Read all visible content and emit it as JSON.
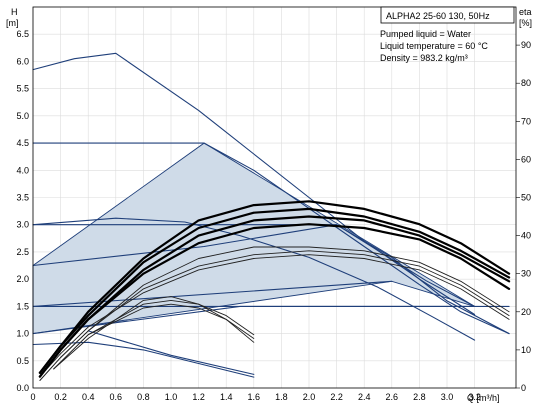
{
  "chart_data": {
    "type": "line",
    "title": "ALPHA2 25-60 130, 50Hz",
    "info": [
      "Pumped liquid = Water",
      "Liquid temperature = 60 °C",
      "Density = 983.2 kg/m³"
    ],
    "y_left": {
      "label": "H",
      "unit": "[m]",
      "range": [
        0,
        7
      ],
      "ticks": [
        "0.0",
        "0.5",
        "1.0",
        "1.5",
        "2.0",
        "2.5",
        "3.0",
        "3.5",
        "4.0",
        "4.5",
        "5.0",
        "5.5",
        "6.0",
        "6.5"
      ]
    },
    "y_right": {
      "label": "eta",
      "unit": "[%]",
      "range": [
        0,
        100
      ],
      "ticks": [
        "0",
        "10",
        "20",
        "30",
        "40",
        "50",
        "60",
        "70",
        "80",
        "90"
      ]
    },
    "x": {
      "label": "Q [m³/h]",
      "range": [
        0,
        3.5
      ],
      "ticks": [
        "0",
        "0.2",
        "0.4",
        "0.6",
        "0.8",
        "1.0",
        "1.2",
        "1.4",
        "1.6",
        "1.8",
        "2.0",
        "2.2",
        "2.4",
        "2.6",
        "2.8",
        "3.0",
        "3.2"
      ]
    },
    "grid": true,
    "operating_area": [
      [
        0,
        1.0
      ],
      [
        0,
        2.25
      ],
      [
        1.24,
        4.5
      ],
      [
        3.2,
        1.5
      ],
      [
        2.6,
        1.96
      ],
      [
        0,
        1.0
      ]
    ],
    "series": [
      {
        "style": "head",
        "x": [
          0,
          0.3,
          0.6,
          1.2,
          1.6,
          2.0,
          2.4,
          2.8,
          3.2
        ],
        "y": [
          5.85,
          6.05,
          6.15,
          5.1,
          4.3,
          3.5,
          2.7,
          2.0,
          1.35
        ]
      },
      {
        "style": "head",
        "x": [
          0,
          1.24,
          1.6,
          2.0,
          2.4,
          2.8,
          3.1,
          3.45
        ],
        "y": [
          4.5,
          4.5,
          4.0,
          3.3,
          2.6,
          1.9,
          1.4,
          1.0
        ]
      },
      {
        "style": "head",
        "x": [
          0,
          0.6,
          1.2,
          1.6,
          2.0,
          2.2,
          2.6,
          3.0,
          3.45
        ],
        "y": [
          3.0,
          3.0,
          3.0,
          3.0,
          3.0,
          3.0,
          2.4,
          1.6,
          1.0
        ]
      },
      {
        "style": "head",
        "x": [
          0,
          2.0,
          2.6,
          3.0,
          3.45
        ],
        "y": [
          1.5,
          1.5,
          1.5,
          1.5,
          1.5
        ]
      },
      {
        "style": "head",
        "x": [
          0,
          0.6,
          1.1,
          1.5,
          2.0,
          2.5,
          2.9,
          3.2
        ],
        "y": [
          3.0,
          3.12,
          3.05,
          2.8,
          2.4,
          1.85,
          1.3,
          0.88
        ]
      },
      {
        "style": "head",
        "x": [
          0,
          1.24,
          2.2,
          2.85,
          3.2
        ],
        "y": [
          2.25,
          2.6,
          3.0,
          1.97,
          1.5
        ]
      },
      {
        "style": "head",
        "x": [
          0,
          2.6
        ],
        "y": [
          1.5,
          1.96
        ]
      },
      {
        "style": "head",
        "x": [
          0,
          1.5,
          3.2
        ],
        "y": [
          1.0,
          1.5,
          1.5
        ]
      },
      {
        "style": "head",
        "x": [
          0,
          0.4,
          0.8,
          1.2,
          1.6
        ],
        "y": [
          0.8,
          0.84,
          0.7,
          0.45,
          0.2
        ]
      },
      {
        "style": "head",
        "x": [
          0.4,
          1.0,
          1.6
        ],
        "y": [
          1.05,
          0.6,
          0.25
        ]
      },
      {
        "style": "eta",
        "x": [
          0.05,
          0.2,
          0.4,
          0.8,
          1.2,
          1.6,
          2.0,
          2.4,
          2.8,
          3.1,
          3.45
        ],
        "y": [
          3,
          9,
          16,
          25,
          31,
          34,
          35,
          34,
          31,
          26,
          18
        ]
      },
      {
        "style": "eta",
        "x": [
          0.05,
          0.2,
          0.4,
          0.8,
          1.2,
          1.6,
          2.0,
          2.4,
          2.8,
          3.1,
          3.45
        ],
        "y": [
          2,
          8,
          15,
          26,
          32,
          35,
          36,
          35,
          32,
          27,
          19
        ]
      },
      {
        "style": "eta",
        "x": [
          0.05,
          0.2,
          0.4,
          0.8,
          1.2,
          1.6,
          2.0,
          2.4,
          2.8,
          3.1,
          3.45
        ],
        "y": [
          2,
          8,
          15,
          27,
          34,
          37,
          37,
          36,
          33,
          28,
          20
        ]
      },
      {
        "style": "eta_bold",
        "x": [
          0.05,
          0.2,
          0.4,
          0.8,
          1.2,
          1.6,
          2.0,
          2.4,
          2.8,
          3.1,
          3.45
        ],
        "y": [
          3,
          10,
          18,
          30,
          38,
          42,
          43,
          42,
          39,
          34,
          26
        ]
      },
      {
        "style": "eta_bold",
        "x": [
          0.05,
          0.2,
          0.4,
          0.8,
          1.2,
          1.6,
          2.0,
          2.4,
          2.8,
          3.1,
          3.45
        ],
        "y": [
          3,
          10,
          18,
          31,
          40,
          44,
          45,
          44,
          40,
          35,
          28
        ]
      },
      {
        "style": "eta_bold",
        "x": [
          0.05,
          0.2,
          0.4,
          0.8,
          1.2,
          1.6,
          2.0,
          2.4,
          2.8,
          3.1,
          3.45
        ],
        "y": [
          4,
          11,
          19,
          33,
          42,
          46,
          47,
          45,
          41,
          36,
          29
        ]
      },
      {
        "style": "eta_bold",
        "x": [
          0.05,
          0.2,
          0.4,
          0.8,
          1.2,
          1.6,
          2.0,
          2.4,
          2.8,
          3.1,
          3.45
        ],
        "y": [
          4,
          11,
          20,
          34,
          44,
          48,
          49,
          47,
          43,
          38,
          30
        ]
      },
      {
        "style": "eta",
        "x": [
          0.15,
          0.4,
          0.8,
          1.0,
          1.2,
          1.4,
          1.6
        ],
        "y": [
          5,
          14,
          21,
          22,
          21,
          18,
          12
        ]
      },
      {
        "style": "eta",
        "x": [
          0.15,
          0.4,
          0.8,
          1.0,
          1.2,
          1.4,
          1.6
        ],
        "y": [
          5,
          13,
          23,
          24,
          22,
          19,
          14
        ]
      },
      {
        "style": "eta",
        "x": [
          0.15,
          0.4,
          0.8,
          1.0,
          1.2,
          1.4,
          1.6
        ],
        "y": [
          5,
          14,
          22,
          23,
          22,
          18,
          13
        ]
      }
    ]
  }
}
